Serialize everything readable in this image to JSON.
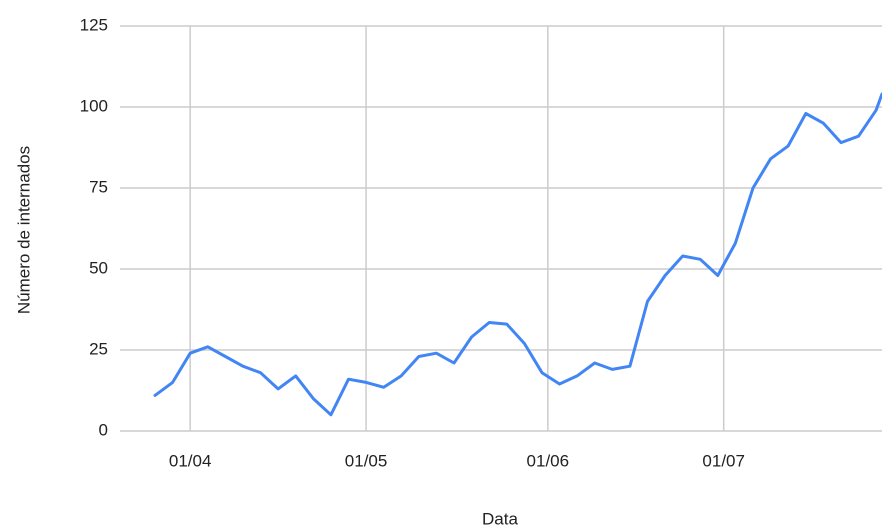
{
  "chart_data": {
    "type": "line",
    "x_label": "Data",
    "y_label": "Número de internados",
    "x": [
      "26/03",
      "29/03",
      "01/04",
      "04/04",
      "07/04",
      "10/04",
      "13/04",
      "16/04",
      "19/04",
      "22/04",
      "25/04",
      "28/04",
      "01/05",
      "04/05",
      "07/05",
      "10/05",
      "13/05",
      "16/05",
      "19/05",
      "22/05",
      "25/05",
      "28/05",
      "31/05",
      "03/06",
      "06/06",
      "09/06",
      "12/06",
      "15/06",
      "18/06",
      "21/06",
      "24/06",
      "27/06",
      "30/06",
      "03/07",
      "06/07",
      "09/07",
      "12/07",
      "15/07",
      "18/07",
      "21/07",
      "24/07",
      "27/07",
      "28/07"
    ],
    "series": [
      {
        "name": "Número de internados",
        "color": "#4285f4",
        "values": [
          11,
          15,
          24,
          26,
          23,
          20,
          18,
          13,
          17,
          10,
          5,
          16,
          15,
          13.5,
          17,
          23,
          24,
          21,
          29,
          33.5,
          33,
          27,
          18,
          14.5,
          17,
          21,
          19,
          20,
          40,
          48,
          54,
          53,
          48,
          58,
          75,
          84,
          88,
          98,
          95,
          89,
          91,
          99,
          104
        ]
      }
    ],
    "xlim": [
      "26/03",
      "28/07"
    ],
    "xticks": [
      "01/04",
      "01/05",
      "01/06",
      "01/07"
    ],
    "ylim": [
      0,
      125
    ],
    "yticks": [
      0,
      25,
      50,
      75,
      100,
      125
    ],
    "grid": true
  }
}
